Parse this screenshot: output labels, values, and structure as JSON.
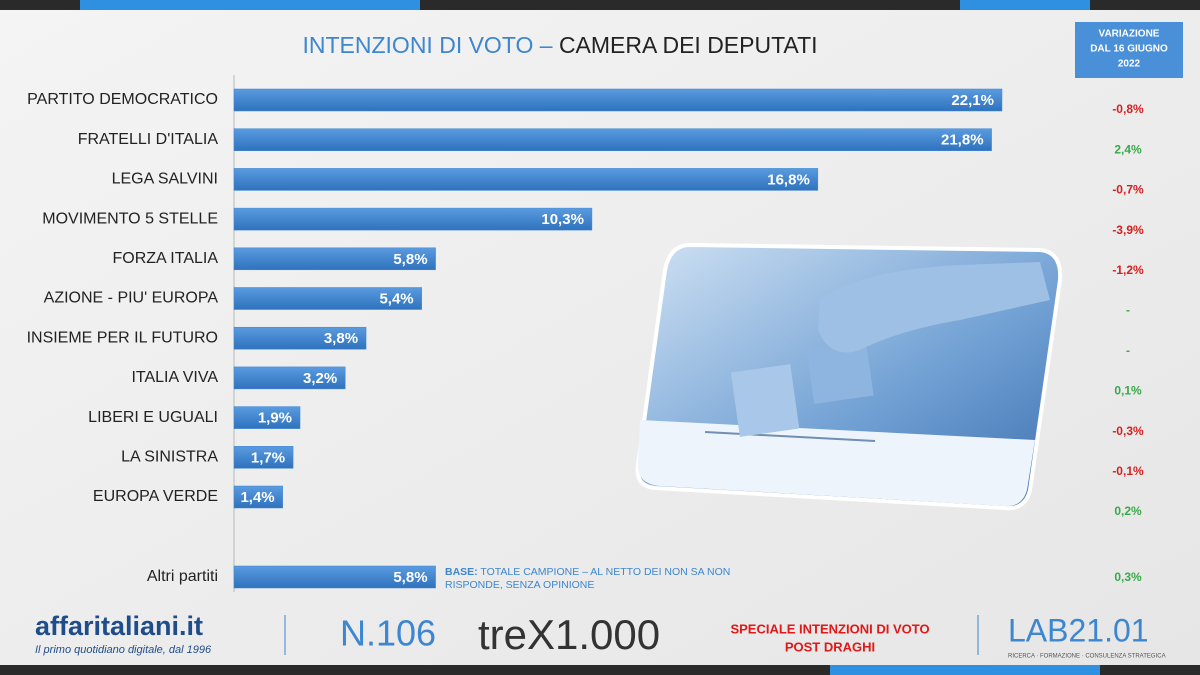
{
  "chart_data": {
    "type": "bar",
    "title": "INTENZIONI DI VOTO",
    "title_dash": "–",
    "subtitle": "CAMERA DEI DEPUTATI",
    "categories": [
      "PARTITO DEMOCRATICO",
      "FRATELLI D'ITALIA",
      "LEGA SALVINI",
      "MOVIMENTO 5 STELLE",
      "FORZA ITALIA",
      "AZIONE - PIU' EUROPA",
      "INSIEME PER IL FUTURO",
      "ITALIA VIVA",
      "LIBERI E UGUALI",
      "LA SINISTRA",
      "EUROPA VERDE",
      "Altri partiti"
    ],
    "values": [
      22.1,
      21.8,
      16.8,
      10.3,
      5.8,
      5.4,
      3.8,
      3.2,
      1.9,
      1.7,
      1.4,
      5.8
    ],
    "value_labels": [
      "22,1%",
      "21,8%",
      "16,8%",
      "10,3%",
      "5,8%",
      "5,4%",
      "3,8%",
      "3,2%",
      "1,9%",
      "1,7%",
      "1,4%",
      "5,8%"
    ],
    "color": "#3d86d0",
    "change": {
      "title_lines": [
        "VARIAZIONE",
        "DAL 16 GIUGNO",
        "2022"
      ],
      "values": [
        -0.8,
        2.4,
        -0.7,
        -3.9,
        -1.2,
        null,
        null,
        0.1,
        -0.3,
        -0.1,
        0.2,
        0.3
      ],
      "value_labels": [
        "-0,8%",
        "2,4%",
        "-0,7%",
        "-3,9%",
        "-1,2%",
        "-",
        "-",
        "0,1%",
        "-0,3%",
        "-0,1%",
        "0,2%",
        "0,3%"
      ],
      "positive_color": "#3aa84a",
      "negative_color": "#d42020"
    },
    "note_label": "BASE:",
    "note_lines": [
      "TOTALE CAMPIONE – AL NETTO DEI NON SA NON",
      "RISPONDE, SENZA OPINIONE"
    ]
  },
  "footer": {
    "brand": "affaritaliani.it",
    "tagline": "Il primo quotidiano digitale, dal 1996",
    "issue": "N.106",
    "partner": "treX1.000",
    "special_lines": [
      "SPECIALE INTENZIONI DI VOTO",
      "POST DRAGHI"
    ],
    "lab": "LAB21.01",
    "lab_tagline": "RICERCA · FORMAZIONE · CONSULENZA STRATEGICA"
  }
}
